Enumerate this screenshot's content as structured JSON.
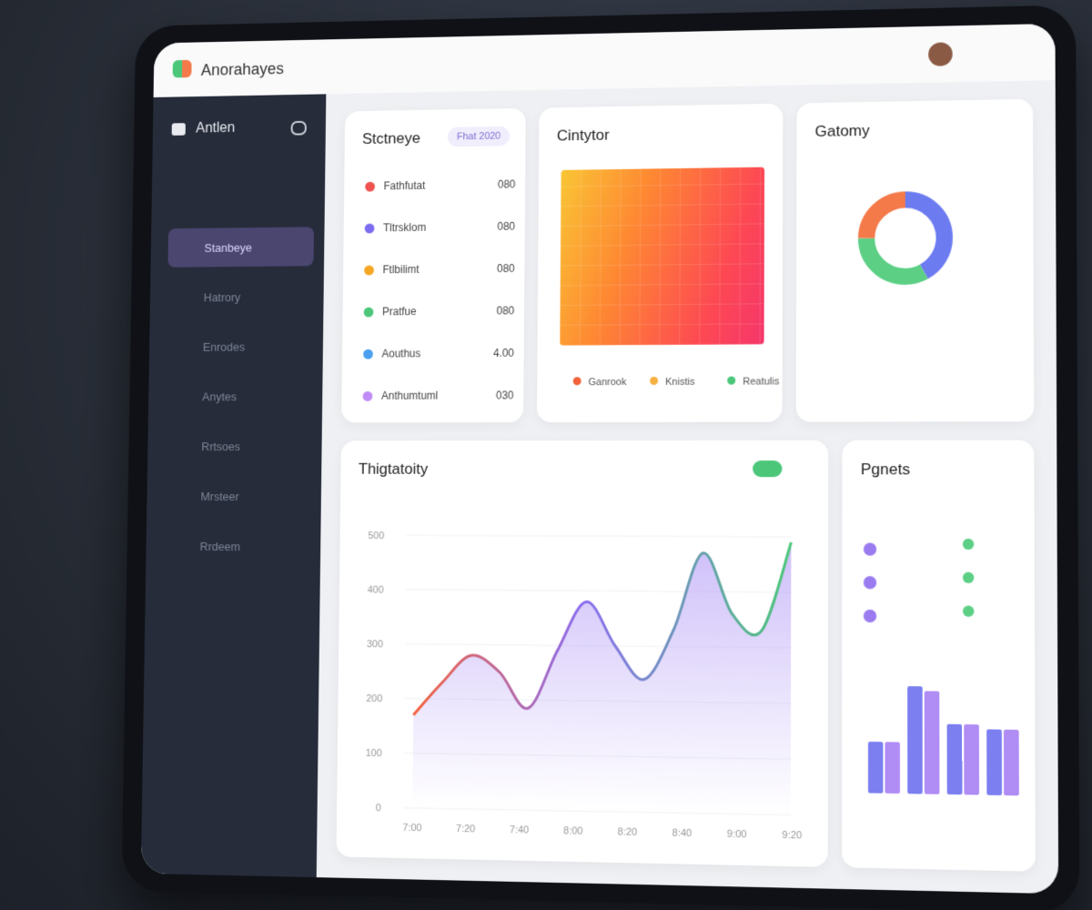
{
  "header": {
    "title": "Anorahayes"
  },
  "sidebar": {
    "brand": "Antlen",
    "nav": [
      "Stanbeye",
      "Hatrory",
      "Enrodes",
      "Anytes",
      "Rrtsoes",
      "Mrsteer",
      "Rrdeem"
    ]
  },
  "summary": {
    "title": "Stctneye",
    "badge": "Fhat 2020",
    "items": [
      {
        "label": "Fathfutat",
        "value": "080",
        "color": "#ef5350"
      },
      {
        "label": "Tltrsklom",
        "value": "080",
        "color": "#7c6cf0"
      },
      {
        "label": "Ftlbilimt",
        "value": "080",
        "color": "#f5a623"
      },
      {
        "label": "Pratfue",
        "value": "080",
        "color": "#4cc77a"
      },
      {
        "label": "Aouthus",
        "value": "4.00",
        "color": "#4a9ff0"
      },
      {
        "label": "Anthumtuml",
        "value": "030",
        "color": "#c08cf5"
      }
    ]
  },
  "heatmap": {
    "title": "Cintytor",
    "legend": [
      {
        "label": "Ganrook",
        "color": "#f4623a"
      },
      {
        "label": "Knistis",
        "color": "#f5b041"
      },
      {
        "label": "Reatulis",
        "color": "#4cc77a"
      }
    ]
  },
  "donut": {
    "title": "Gatomy",
    "values": [
      42,
      33,
      25
    ],
    "colors": [
      "#6c7cf0",
      "#5ccf85",
      "#f47a4a"
    ]
  },
  "activity": {
    "title": "Thigtatoity",
    "ylim": [
      0,
      500
    ],
    "yticks": [
      0,
      100,
      200,
      300,
      400,
      500
    ],
    "xlabels": [
      "7:00",
      "7:20",
      "7:40",
      "8:00",
      "8:20",
      "8:40",
      "9:00",
      "9:20"
    ],
    "values": [
      170,
      230,
      280,
      250,
      185,
      290,
      380,
      300,
      240,
      330,
      470,
      360,
      330,
      490
    ],
    "colors": [
      "#f4623a",
      "#8b6cf0",
      "#4cc77a"
    ]
  },
  "panel": {
    "title": "Pgnets",
    "bars": [
      {
        "values": [
          55,
          115,
          75,
          70
        ],
        "color": "#7b7ff0"
      },
      {
        "values": [
          55,
          110,
          75,
          70
        ],
        "color": "#b08cf5"
      }
    ]
  }
}
